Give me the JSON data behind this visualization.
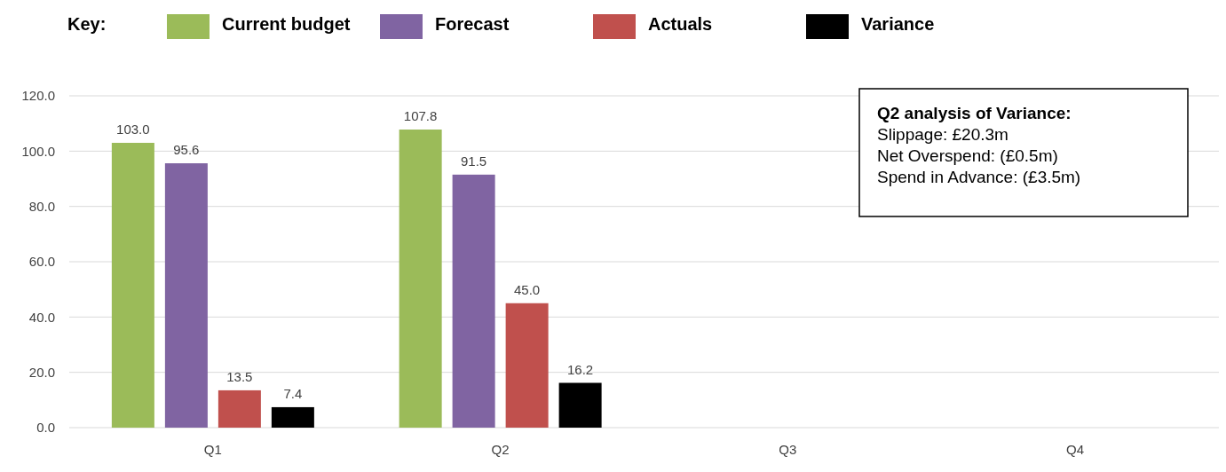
{
  "chart_data": {
    "type": "bar",
    "legend_title": "Key:",
    "legend": "top",
    "grid": "y",
    "categories": [
      "Q1",
      "Q2",
      "Q3",
      "Q4"
    ],
    "series": [
      {
        "name": "Current budget",
        "color": "#9bbb59",
        "values": [
          103.0,
          107.8,
          null,
          null
        ],
        "value_labels": [
          "103.0",
          "107.8",
          null,
          null
        ]
      },
      {
        "name": "Forecast",
        "color": "#8064a2",
        "values": [
          95.6,
          91.5,
          null,
          null
        ],
        "value_labels": [
          "95.6",
          "91.5",
          null,
          null
        ]
      },
      {
        "name": "Actuals",
        "color": "#c0504d",
        "values": [
          13.5,
          45.0,
          null,
          null
        ],
        "value_labels": [
          "13.5",
          "45.0",
          null,
          null
        ]
      },
      {
        "name": "Variance",
        "color": "#000000",
        "values": [
          7.4,
          16.2,
          null,
          null
        ],
        "value_labels": [
          "7.4",
          "16.2",
          null,
          null
        ]
      }
    ],
    "ylim": [
      0,
      120
    ],
    "yticks": [
      {
        "value": 0,
        "label": "0.0"
      },
      {
        "value": 20,
        "label": "20.0"
      },
      {
        "value": 40,
        "label": "40.0"
      },
      {
        "value": 60,
        "label": "60.0"
      },
      {
        "value": 80,
        "label": "80.0"
      },
      {
        "value": 100,
        "label": "100.0"
      },
      {
        "value": 120,
        "label": "120.0"
      }
    ],
    "annotations": [
      "Q2 analysis of Variance:",
      "Slippage: £20.3m",
      "Net Overspend: (£0.5m)",
      "Spend in Advance: (£3.5m)"
    ]
  }
}
